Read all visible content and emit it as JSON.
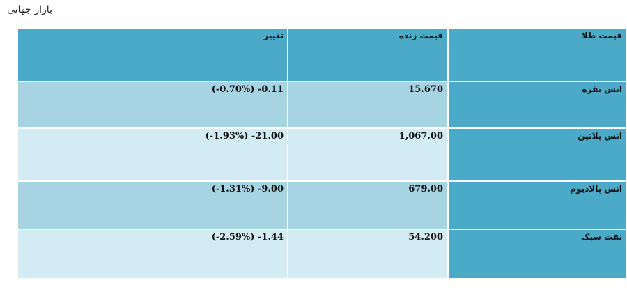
{
  "page": {
    "title": "بازار جهانی"
  },
  "table": {
    "headers": {
      "name": "قیمت طلا",
      "price": "قیمت زنده",
      "change": "تغییر"
    },
    "rows": [
      {
        "name": "انس نقره",
        "price": "15.670",
        "change": "(-0.70%) -0.11"
      },
      {
        "name": "انس پلاتین",
        "price": "1,067.00",
        "change": "(-1.93%) -21.00"
      },
      {
        "name": "انس پالادیوم",
        "price": "679.00",
        "change": "(-1.31%) -9.00"
      },
      {
        "name": "نفت سبک",
        "price": "54.200",
        "change": "(-2.59%) -1.44"
      }
    ]
  },
  "colors": {
    "header": "#4aaac7",
    "row_odd": "#a6d4e2",
    "row_even": "#d3ebf2"
  }
}
